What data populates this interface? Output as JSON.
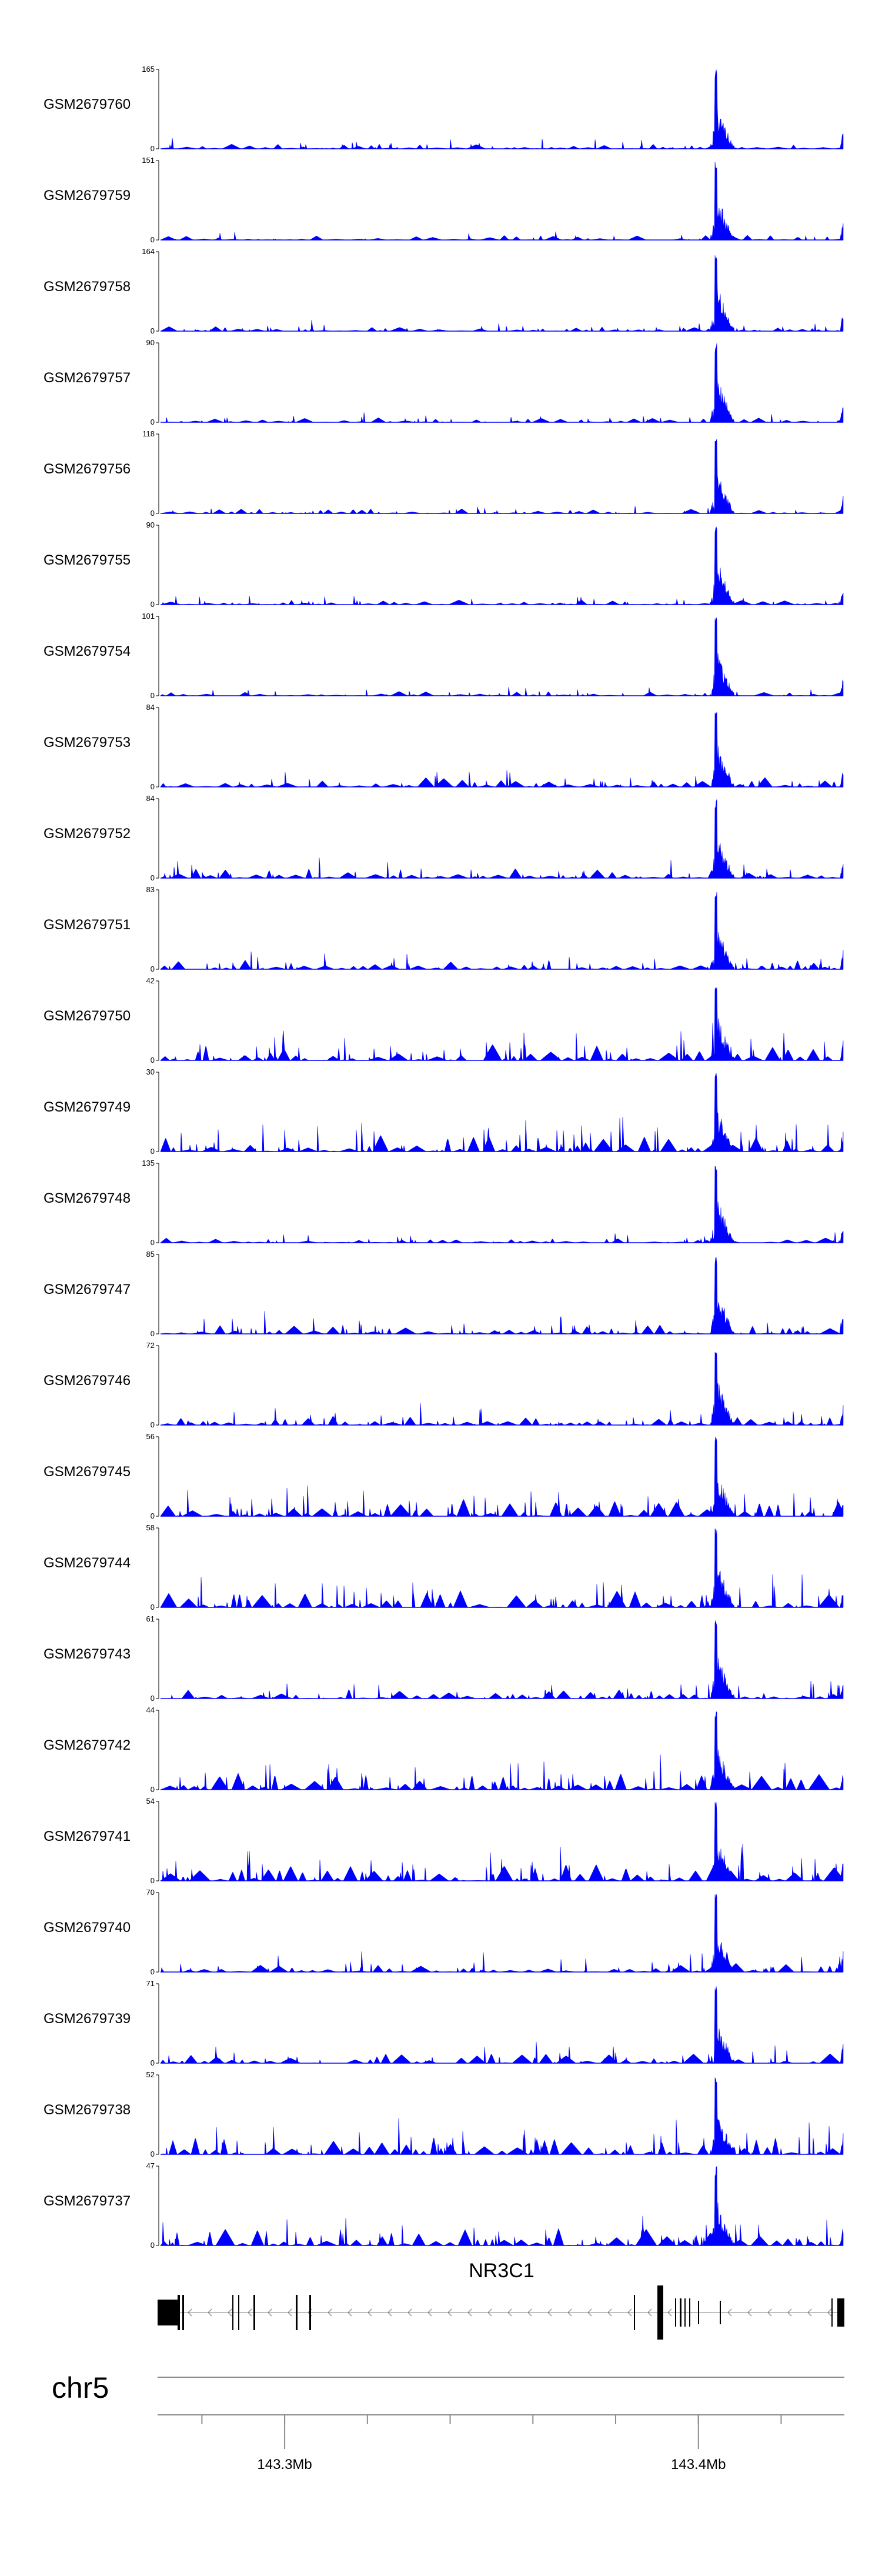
{
  "colors": {
    "signal": "#0000ff",
    "axis": "#000000",
    "genome_axis": "#8c8c8c",
    "gene": "#000000"
  },
  "chart_data": {
    "type": "area",
    "chromosome": "chr5",
    "gene": {
      "name": "NR3C1",
      "strand": "-"
    },
    "x_ticks": [
      {
        "label": "143.3Mb",
        "value": 143.3
      },
      {
        "label": "143.4Mb",
        "value": 143.4
      }
    ],
    "xlim": [
      143.27,
      143.435
    ],
    "peak_position": 143.404,
    "tracks": [
      {
        "name": "GSM2679760",
        "ymax": 165,
        "ymin": 0,
        "peak": 165
      },
      {
        "name": "GSM2679759",
        "ymax": 151,
        "ymin": 0,
        "peak": 151
      },
      {
        "name": "GSM2679758",
        "ymax": 164,
        "ymin": 0,
        "peak": 164
      },
      {
        "name": "GSM2679757",
        "ymax": 90,
        "ymin": 0,
        "peak": 90
      },
      {
        "name": "GSM2679756",
        "ymax": 118,
        "ymin": 0,
        "peak": 118
      },
      {
        "name": "GSM2679755",
        "ymax": 90,
        "ymin": 0,
        "peak": 90
      },
      {
        "name": "GSM2679754",
        "ymax": 101,
        "ymin": 0,
        "peak": 101
      },
      {
        "name": "GSM2679753",
        "ymax": 84,
        "ymin": 0,
        "peak": 84
      },
      {
        "name": "GSM2679752",
        "ymax": 84,
        "ymin": 0,
        "peak": 84
      },
      {
        "name": "GSM2679751",
        "ymax": 83,
        "ymin": 0,
        "peak": 83
      },
      {
        "name": "GSM2679750",
        "ymax": 42,
        "ymin": 0,
        "peak": 42
      },
      {
        "name": "GSM2679749",
        "ymax": 30,
        "ymin": 0,
        "peak": 30
      },
      {
        "name": "GSM2679748",
        "ymax": 135,
        "ymin": 0,
        "peak": 135
      },
      {
        "name": "GSM2679747",
        "ymax": 85,
        "ymin": 0,
        "peak": 85
      },
      {
        "name": "GSM2679746",
        "ymax": 72,
        "ymin": 0,
        "peak": 72
      },
      {
        "name": "GSM2679745",
        "ymax": 56,
        "ymin": 0,
        "peak": 56
      },
      {
        "name": "GSM2679744",
        "ymax": 58,
        "ymin": 0,
        "peak": 58
      },
      {
        "name": "GSM2679743",
        "ymax": 61,
        "ymin": 0,
        "peak": 61
      },
      {
        "name": "GSM2679742",
        "ymax": 44,
        "ymin": 0,
        "peak": 44
      },
      {
        "name": "GSM2679741",
        "ymax": 54,
        "ymin": 0,
        "peak": 54
      },
      {
        "name": "GSM2679740",
        "ymax": 70,
        "ymin": 0,
        "peak": 70
      },
      {
        "name": "GSM2679739",
        "ymax": 71,
        "ymin": 0,
        "peak": 71
      },
      {
        "name": "GSM2679738",
        "ymax": 52,
        "ymin": 0,
        "peak": 52
      },
      {
        "name": "GSM2679737",
        "ymax": 47,
        "ymin": 0,
        "peak": 47
      }
    ]
  }
}
